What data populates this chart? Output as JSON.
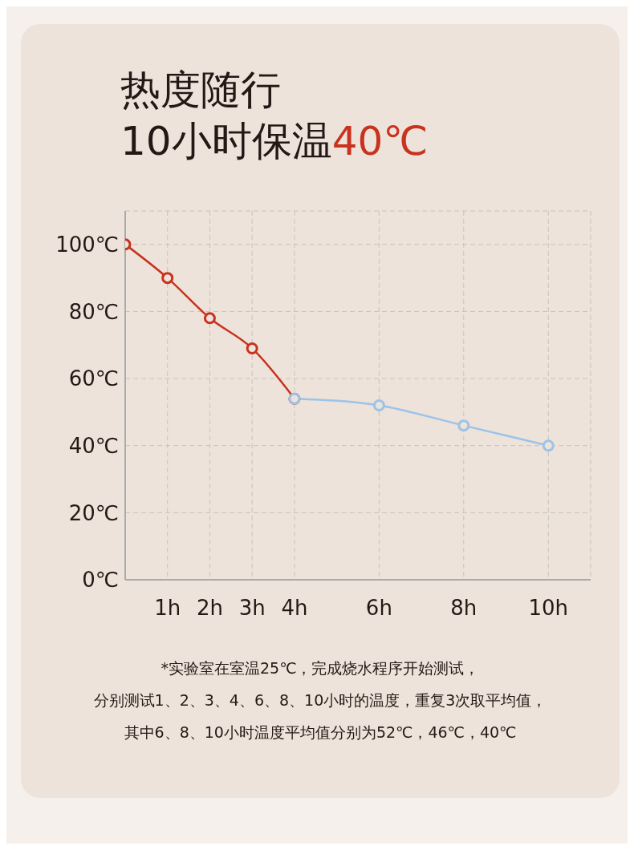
{
  "chart_data": {
    "type": "line",
    "title": "热度随行",
    "subtitle": "10小时保温40℃",
    "series": [
      {
        "color": "#c8321e",
        "x": [
          0,
          1,
          2,
          3,
          4
        ],
        "values": [
          100,
          90,
          78,
          69,
          54
        ]
      },
      {
        "color": "#9cc3e8",
        "x": [
          4,
          6,
          8,
          10
        ],
        "values": [
          54,
          52,
          46,
          40
        ]
      }
    ],
    "xlim": [
      0,
      11
    ],
    "xticks": [
      {
        "value": 1,
        "label": "1h"
      },
      {
        "value": 2,
        "label": "2h"
      },
      {
        "value": 3,
        "label": "3h"
      },
      {
        "value": 4,
        "label": "4h"
      },
      {
        "value": 6,
        "label": "6h"
      },
      {
        "value": 8,
        "label": "8h"
      },
      {
        "value": 10,
        "label": "10h"
      }
    ],
    "ylim": [
      0,
      110
    ],
    "yticks": [
      {
        "value": 0,
        "label": "0℃"
      },
      {
        "value": 20,
        "label": "20℃"
      },
      {
        "value": 40,
        "label": "40℃"
      },
      {
        "value": 60,
        "label": "60℃"
      },
      {
        "value": 80,
        "label": "80℃"
      },
      {
        "value": 100,
        "label": "100℃"
      }
    ],
    "grid": true,
    "marker": "circle",
    "line_style": "solid",
    "annotations": [
      "*实验室在室温25℃，完成烧水程序开始测试，",
      "分别测试1、2、3、4、6、8、10小时的温度，重复3次取平均值，",
      "其中6、8、10小时温度平均值分别为52℃，46℃，40℃"
    ]
  }
}
